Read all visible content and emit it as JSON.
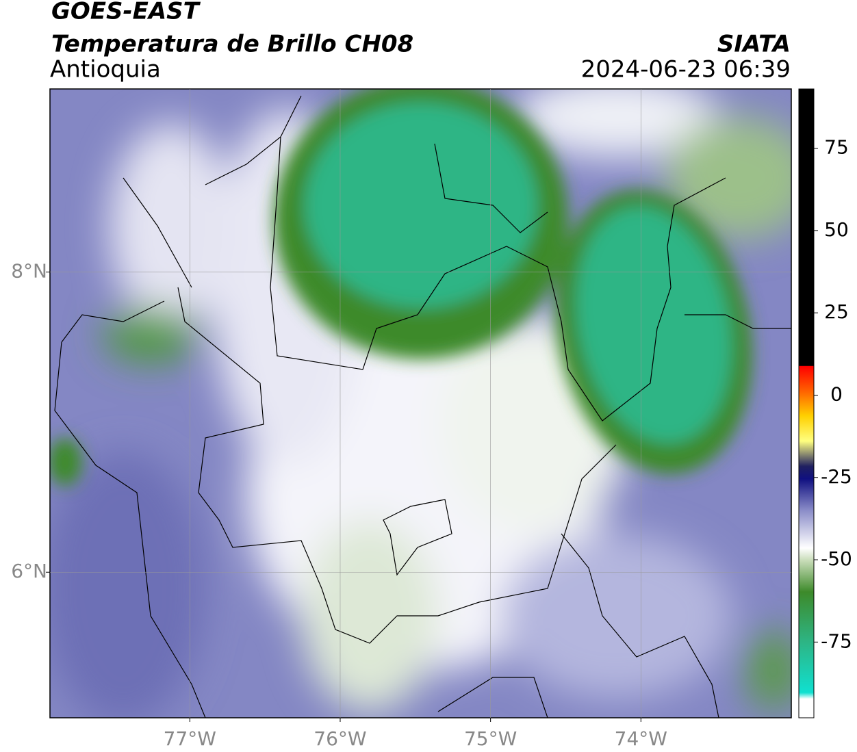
{
  "header": {
    "title": "GOES-EAST",
    "subtitle": "Temperatura de Brillo CH08",
    "region": "Antioquia",
    "source": "SIATA",
    "timestamp": "2024-06-23 06:39"
  },
  "map": {
    "xlim": [
      -77.93,
      -73.0
    ],
    "ylim": [
      5.03,
      9.22
    ],
    "xticks": [
      {
        "value": -77,
        "label": "77°W"
      },
      {
        "value": -76,
        "label": "76°W"
      },
      {
        "value": -75,
        "label": "75°W"
      },
      {
        "value": -74,
        "label": "74°W"
      }
    ],
    "yticks": [
      {
        "value": 6,
        "label": "6°N"
      },
      {
        "value": 8,
        "label": "8°N"
      }
    ],
    "grid": true
  },
  "colorbar": {
    "lim": [
      -98,
      93
    ],
    "ticks": [
      -75,
      -50,
      -25,
      0,
      25,
      50,
      75
    ]
  }
}
